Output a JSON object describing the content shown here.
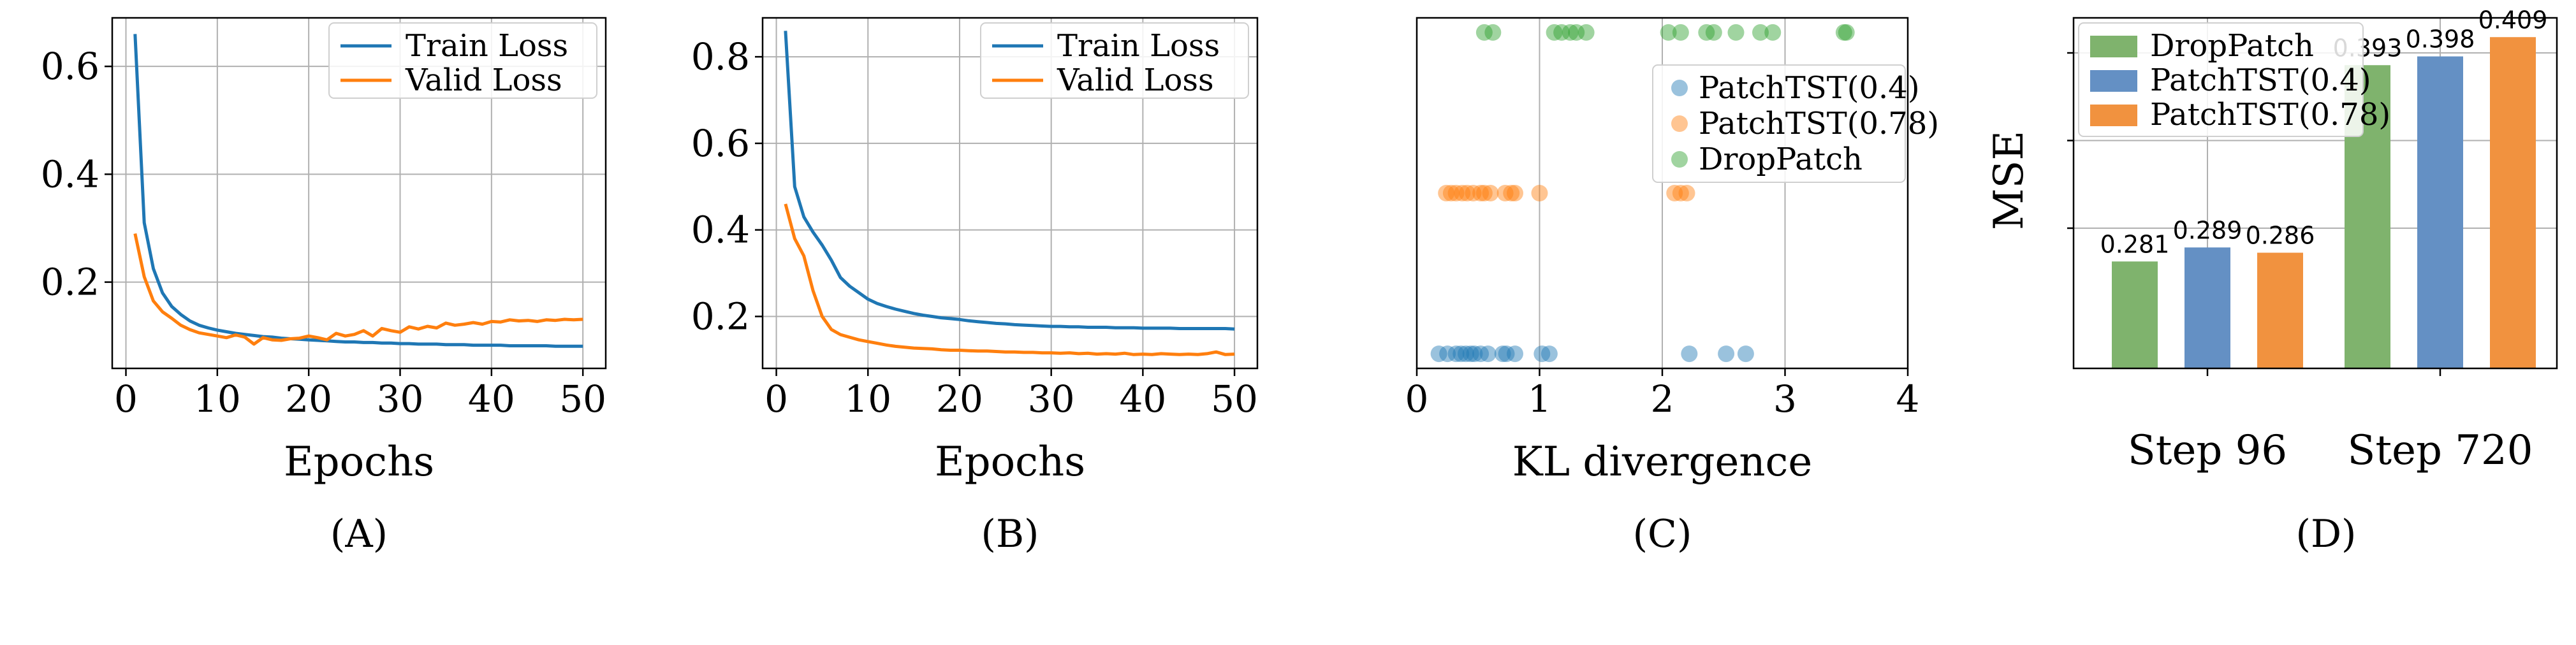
{
  "colors": {
    "blue": "#1f77b4",
    "orange": "#ff7f0e",
    "green": "#2ca02c",
    "bar_green": "#7fb36d",
    "bar_blue": "#6490c4",
    "bar_orange": "#f1923f"
  },
  "chart_data": [
    {
      "id": "A",
      "type": "line",
      "caption": "(A)",
      "xlabel": "Epochs",
      "ylabel": "",
      "xlim": [
        -1.5,
        52.5
      ],
      "ylim": [
        0.04,
        0.69
      ],
      "grid": true,
      "legend_position": "top-right",
      "xticks": [
        0,
        10,
        20,
        30,
        40,
        50
      ],
      "yticks": [
        0.2,
        0.4,
        0.6
      ],
      "series": [
        {
          "name": "Train Loss",
          "color": "#1f77b4",
          "x": [
            1,
            2,
            3,
            4,
            5,
            6,
            7,
            8,
            9,
            10,
            11,
            12,
            13,
            14,
            15,
            16,
            17,
            18,
            19,
            20,
            21,
            22,
            23,
            24,
            25,
            26,
            27,
            28,
            29,
            30,
            31,
            32,
            33,
            34,
            35,
            36,
            37,
            38,
            39,
            40,
            41,
            42,
            43,
            44,
            45,
            46,
            47,
            48,
            49,
            50
          ],
          "y": [
            0.66,
            0.31,
            0.225,
            0.18,
            0.155,
            0.14,
            0.128,
            0.12,
            0.115,
            0.111,
            0.108,
            0.105,
            0.103,
            0.101,
            0.099,
            0.098,
            0.096,
            0.095,
            0.094,
            0.093,
            0.092,
            0.091,
            0.09,
            0.089,
            0.089,
            0.088,
            0.088,
            0.087,
            0.087,
            0.086,
            0.086,
            0.085,
            0.085,
            0.085,
            0.084,
            0.084,
            0.084,
            0.083,
            0.083,
            0.083,
            0.083,
            0.082,
            0.082,
            0.082,
            0.082,
            0.082,
            0.081,
            0.081,
            0.081,
            0.081
          ]
        },
        {
          "name": "Valid Loss",
          "color": "#ff7f0e",
          "x": [
            1,
            2,
            3,
            4,
            5,
            6,
            7,
            8,
            9,
            10,
            11,
            12,
            13,
            14,
            15,
            16,
            17,
            18,
            19,
            20,
            21,
            22,
            23,
            24,
            25,
            26,
            27,
            28,
            29,
            30,
            31,
            32,
            33,
            34,
            35,
            36,
            37,
            38,
            39,
            40,
            41,
            42,
            43,
            44,
            45,
            46,
            47,
            48,
            49,
            50
          ],
          "y": [
            0.29,
            0.21,
            0.165,
            0.145,
            0.133,
            0.12,
            0.112,
            0.106,
            0.103,
            0.1,
            0.097,
            0.102,
            0.098,
            0.085,
            0.097,
            0.093,
            0.092,
            0.095,
            0.096,
            0.1,
            0.097,
            0.093,
            0.105,
            0.1,
            0.103,
            0.11,
            0.1,
            0.114,
            0.11,
            0.107,
            0.117,
            0.113,
            0.118,
            0.115,
            0.124,
            0.12,
            0.122,
            0.125,
            0.122,
            0.127,
            0.126,
            0.13,
            0.128,
            0.129,
            0.127,
            0.13,
            0.129,
            0.131,
            0.13,
            0.131
          ]
        }
      ]
    },
    {
      "id": "B",
      "type": "line",
      "caption": "(B)",
      "xlabel": "Epochs",
      "ylabel": "",
      "xlim": [
        -1.5,
        52.5
      ],
      "ylim": [
        0.08,
        0.89
      ],
      "grid": true,
      "legend_position": "top-right",
      "xticks": [
        0,
        10,
        20,
        30,
        40,
        50
      ],
      "yticks": [
        0.2,
        0.4,
        0.6,
        0.8
      ],
      "series": [
        {
          "name": "Train Loss",
          "color": "#1f77b4",
          "x": [
            1,
            2,
            3,
            4,
            5,
            6,
            7,
            8,
            9,
            10,
            11,
            12,
            13,
            14,
            15,
            16,
            17,
            18,
            19,
            20,
            21,
            22,
            23,
            24,
            25,
            26,
            27,
            28,
            29,
            30,
            31,
            32,
            33,
            34,
            35,
            36,
            37,
            38,
            39,
            40,
            41,
            42,
            43,
            44,
            45,
            46,
            47,
            48,
            49,
            50
          ],
          "y": [
            0.86,
            0.5,
            0.43,
            0.395,
            0.365,
            0.33,
            0.29,
            0.27,
            0.255,
            0.24,
            0.23,
            0.223,
            0.217,
            0.212,
            0.207,
            0.203,
            0.2,
            0.197,
            0.195,
            0.193,
            0.19,
            0.188,
            0.186,
            0.184,
            0.183,
            0.181,
            0.18,
            0.179,
            0.178,
            0.177,
            0.177,
            0.176,
            0.176,
            0.175,
            0.175,
            0.175,
            0.174,
            0.174,
            0.174,
            0.173,
            0.173,
            0.173,
            0.173,
            0.172,
            0.172,
            0.172,
            0.172,
            0.172,
            0.172,
            0.171
          ]
        },
        {
          "name": "Valid Loss",
          "color": "#ff7f0e",
          "x": [
            1,
            2,
            3,
            4,
            5,
            6,
            7,
            8,
            9,
            10,
            11,
            12,
            13,
            14,
            15,
            16,
            17,
            18,
            19,
            20,
            21,
            22,
            23,
            24,
            25,
            26,
            27,
            28,
            29,
            30,
            31,
            32,
            33,
            34,
            35,
            36,
            37,
            38,
            39,
            40,
            41,
            42,
            43,
            44,
            45,
            46,
            47,
            48,
            49,
            50
          ],
          "y": [
            0.46,
            0.38,
            0.34,
            0.26,
            0.2,
            0.17,
            0.158,
            0.152,
            0.146,
            0.142,
            0.138,
            0.134,
            0.131,
            0.129,
            0.127,
            0.126,
            0.125,
            0.123,
            0.122,
            0.122,
            0.121,
            0.12,
            0.12,
            0.119,
            0.118,
            0.118,
            0.117,
            0.117,
            0.116,
            0.116,
            0.115,
            0.116,
            0.114,
            0.115,
            0.113,
            0.114,
            0.113,
            0.115,
            0.112,
            0.113,
            0.112,
            0.114,
            0.113,
            0.112,
            0.113,
            0.112,
            0.114,
            0.118,
            0.112,
            0.113
          ]
        }
      ]
    },
    {
      "id": "C",
      "type": "scatter",
      "caption": "(C)",
      "xlabel": "KL divergence",
      "ylabel": "",
      "xlim": [
        0,
        4
      ],
      "ylim": [
        0,
        2.4
      ],
      "grid": true,
      "legend_position": "top-right",
      "xticks": [
        0,
        1,
        2,
        3,
        4
      ],
      "yticks": [],
      "series": [
        {
          "name": "PatchTST(0.4)",
          "color": "#1f77b4",
          "y_level": 0.1,
          "x": [
            0.18,
            0.25,
            0.32,
            0.36,
            0.4,
            0.44,
            0.47,
            0.52,
            0.58,
            0.7,
            0.73,
            0.8,
            1.02,
            1.08,
            2.22,
            2.52,
            2.68
          ]
        },
        {
          "name": "PatchTST(0.78)",
          "color": "#ff7f0e",
          "y_level": 1.2,
          "x": [
            0.24,
            0.28,
            0.32,
            0.37,
            0.41,
            0.46,
            0.52,
            0.55,
            0.6,
            0.72,
            0.77,
            0.8,
            1.0,
            2.1,
            2.15,
            2.2
          ]
        },
        {
          "name": "DropPatch",
          "color": "#2ca02c",
          "y_level": 2.3,
          "x": [
            0.55,
            0.62,
            1.12,
            1.18,
            1.25,
            1.3,
            1.38,
            2.05,
            2.15,
            2.36,
            2.42,
            2.6,
            2.8,
            2.9,
            3.48,
            3.5
          ]
        }
      ]
    },
    {
      "id": "D",
      "type": "bar",
      "caption": "(D)",
      "xlabel": "",
      "ylabel": "MSE",
      "ylim": [
        0.22,
        0.42
      ],
      "grid": true,
      "legend_position": "top-left",
      "categories": [
        "Step 96",
        "Step 720"
      ],
      "series": [
        {
          "name": "DropPatch",
          "color": "#7fb36d",
          "values": [
            0.281,
            0.393
          ]
        },
        {
          "name": "PatchTST(0.4)",
          "color": "#6490c4",
          "values": [
            0.289,
            0.398
          ]
        },
        {
          "name": "PatchTST(0.78)",
          "color": "#f1923f",
          "values": [
            0.286,
            0.409
          ]
        }
      ]
    }
  ]
}
